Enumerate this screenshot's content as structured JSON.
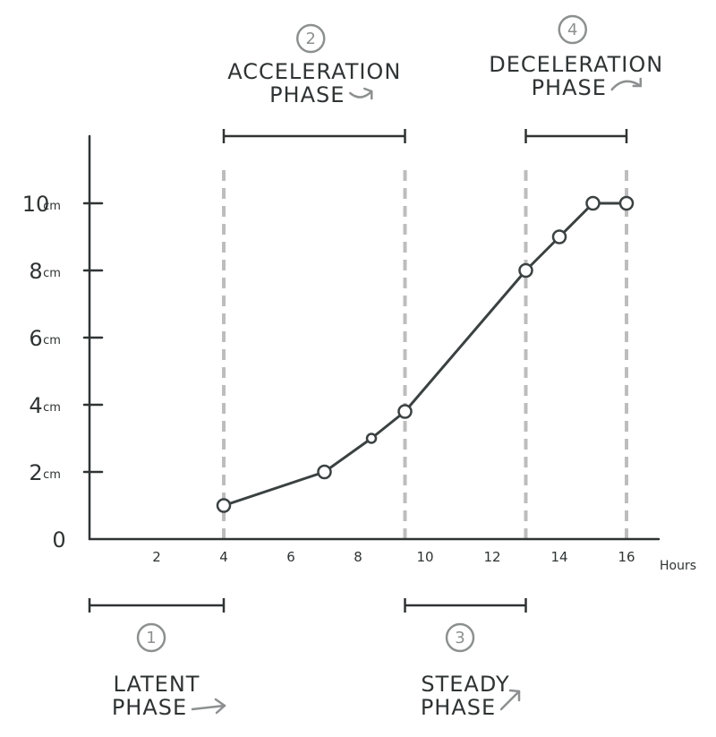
{
  "chart_data": {
    "type": "line",
    "x_unit_label": "Hours",
    "y_ticks": [
      {
        "value": 0,
        "label": "0",
        "unit": ""
      },
      {
        "value": 2,
        "label": "2",
        "unit": "cm"
      },
      {
        "value": 4,
        "label": "4",
        "unit": "cm"
      },
      {
        "value": 6,
        "label": "6",
        "unit": "cm"
      },
      {
        "value": 8,
        "label": "8",
        "unit": "cm"
      },
      {
        "value": 10,
        "label": "10",
        "unit": "cm"
      }
    ],
    "x_ticks": [
      2,
      4,
      6,
      8,
      10,
      12,
      14,
      16
    ],
    "xlim": [
      0,
      16.9
    ],
    "ylim": [
      0,
      12
    ],
    "points": [
      {
        "x": 4,
        "y": 1
      },
      {
        "x": 7,
        "y": 2
      },
      {
        "x": 8.4,
        "y": 3
      },
      {
        "x": 9.4,
        "y": 3.8
      },
      {
        "x": 13,
        "y": 8
      },
      {
        "x": 14,
        "y": 9
      },
      {
        "x": 15,
        "y": 10
      },
      {
        "x": 16,
        "y": 10
      }
    ],
    "phase_boundaries": [
      4,
      9.4,
      13,
      16
    ],
    "phases": [
      {
        "number": "1",
        "line1": "Latent",
        "line2": "Phase",
        "start": 0,
        "end": 4,
        "position": "bottom",
        "arrow": "right"
      },
      {
        "number": "2",
        "line1": "Acceleration",
        "line2": "Phase",
        "start": 4,
        "end": 9.4,
        "position": "top",
        "arrow": "up-curve"
      },
      {
        "number": "3",
        "line1": "Steady",
        "line2": "Phase",
        "start": 9.4,
        "end": 13,
        "position": "bottom",
        "arrow": "up"
      },
      {
        "number": "4",
        "line1": "Deceleration",
        "line2": "Phase",
        "start": 13,
        "end": 16,
        "position": "top",
        "arrow": "down-curve"
      }
    ],
    "colors": {
      "line": "#3b4141",
      "axis": "#2f3333",
      "boundary": "#bdbdbd",
      "marker_fill": "#ffffff",
      "muted": "#8d9090"
    }
  }
}
